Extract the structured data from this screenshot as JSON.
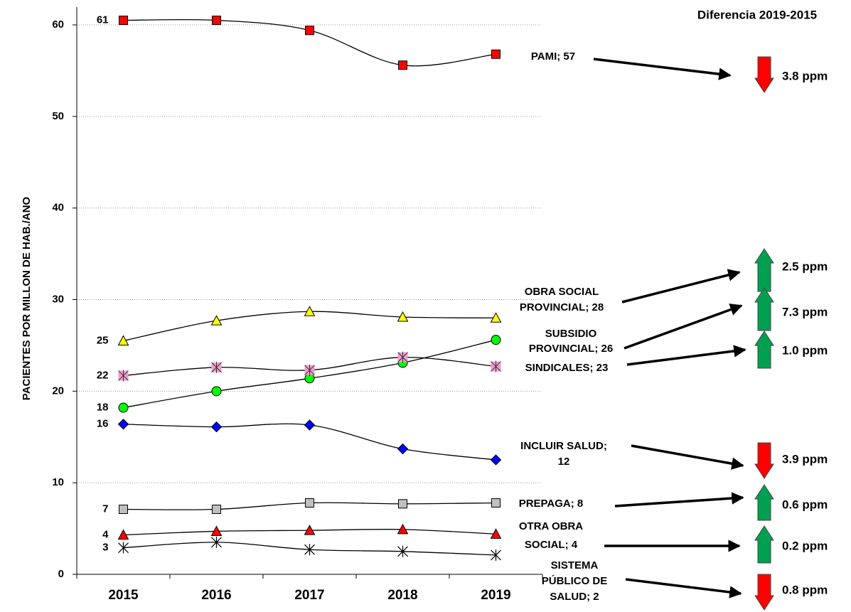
{
  "chart_data": {
    "type": "line",
    "title": "Diferencia 2019-2015",
    "y_label": "PACIENTES POR MILLON DE HAB./ANO",
    "categories": [
      "2015",
      "2016",
      "2017",
      "2018",
      "2019"
    ],
    "ylim": [
      0,
      60
    ],
    "yticks": [
      0,
      10,
      20,
      30,
      40,
      50,
      60
    ],
    "grid": true,
    "up_color": "#00a050",
    "down_color": "#ff0000",
    "series": [
      {
        "label": [
          "PAMI; 57"
        ],
        "marker": "square",
        "color": "#ff0000",
        "values": [
          60.5,
          60.5,
          59.4,
          55.6,
          56.8
        ],
        "value_labels": [
          "61",
          null,
          null,
          null,
          null
        ],
        "trend": "down",
        "diff_label": "3.8 ppm"
      },
      {
        "label": [
          "OBRA SOCIAL",
          "PROVINCIAL; 28"
        ],
        "marker": "triangle",
        "color": "#ffff00",
        "values": [
          25.5,
          27.7,
          28.7,
          28.1,
          28.0
        ],
        "value_labels": [
          "25",
          null,
          null,
          null,
          null
        ],
        "trend": "up",
        "diff_label": "2.5 ppm"
      },
      {
        "label": [
          "SUBSIDIO",
          "PROVINCIAL; 26"
        ],
        "marker": "circle",
        "color": "#00ff00",
        "values": [
          18.2,
          20.0,
          21.4,
          23.1,
          25.6
        ],
        "value_labels": [
          "18",
          null,
          null,
          null,
          null
        ],
        "trend": "up",
        "diff_label": "7.3 ppm"
      },
      {
        "label": [
          "SINDICALES; 23"
        ],
        "marker": "starsquare",
        "color": "#f09ccc",
        "values": [
          21.7,
          22.6,
          22.3,
          23.7,
          22.7
        ],
        "value_labels": [
          "22",
          null,
          null,
          null,
          null
        ],
        "trend": "up",
        "diff_label": "1.0 ppm"
      },
      {
        "label": [
          "INCLUIR SALUD;",
          "12"
        ],
        "marker": "diamond",
        "color": "#0000ff",
        "values": [
          16.4,
          16.1,
          16.3,
          13.7,
          12.5
        ],
        "value_labels": [
          "16",
          null,
          null,
          null,
          null
        ],
        "trend": "down",
        "diff_label": "3.9 ppm"
      },
      {
        "label": [
          "PREPAGA; 8"
        ],
        "marker": "square",
        "color": "#c0c0c0",
        "values": [
          7.1,
          7.1,
          7.8,
          7.7,
          7.8
        ],
        "value_labels": [
          "7",
          null,
          null,
          null,
          null
        ],
        "trend": "up",
        "diff_label": "0.6 ppm"
      },
      {
        "label": [
          "OTRA OBRA",
          "SOCIAL; 4"
        ],
        "marker": "triangle",
        "color": "#ff0000",
        "values": [
          4.3,
          4.7,
          4.8,
          4.9,
          4.4
        ],
        "value_labels": [
          "4",
          null,
          null,
          null,
          null
        ],
        "trend": "up",
        "diff_label": "0.2 ppm"
      },
      {
        "label": [
          "SISTEMA",
          "PÚBLICO DE",
          "SALUD; 2"
        ],
        "marker": "star",
        "color": "#000000",
        "values": [
          2.9,
          3.5,
          2.7,
          2.5,
          2.1
        ],
        "value_labels": [
          "3",
          null,
          null,
          null,
          null
        ],
        "trend": "down",
        "diff_label": "0.8 ppm"
      }
    ]
  }
}
